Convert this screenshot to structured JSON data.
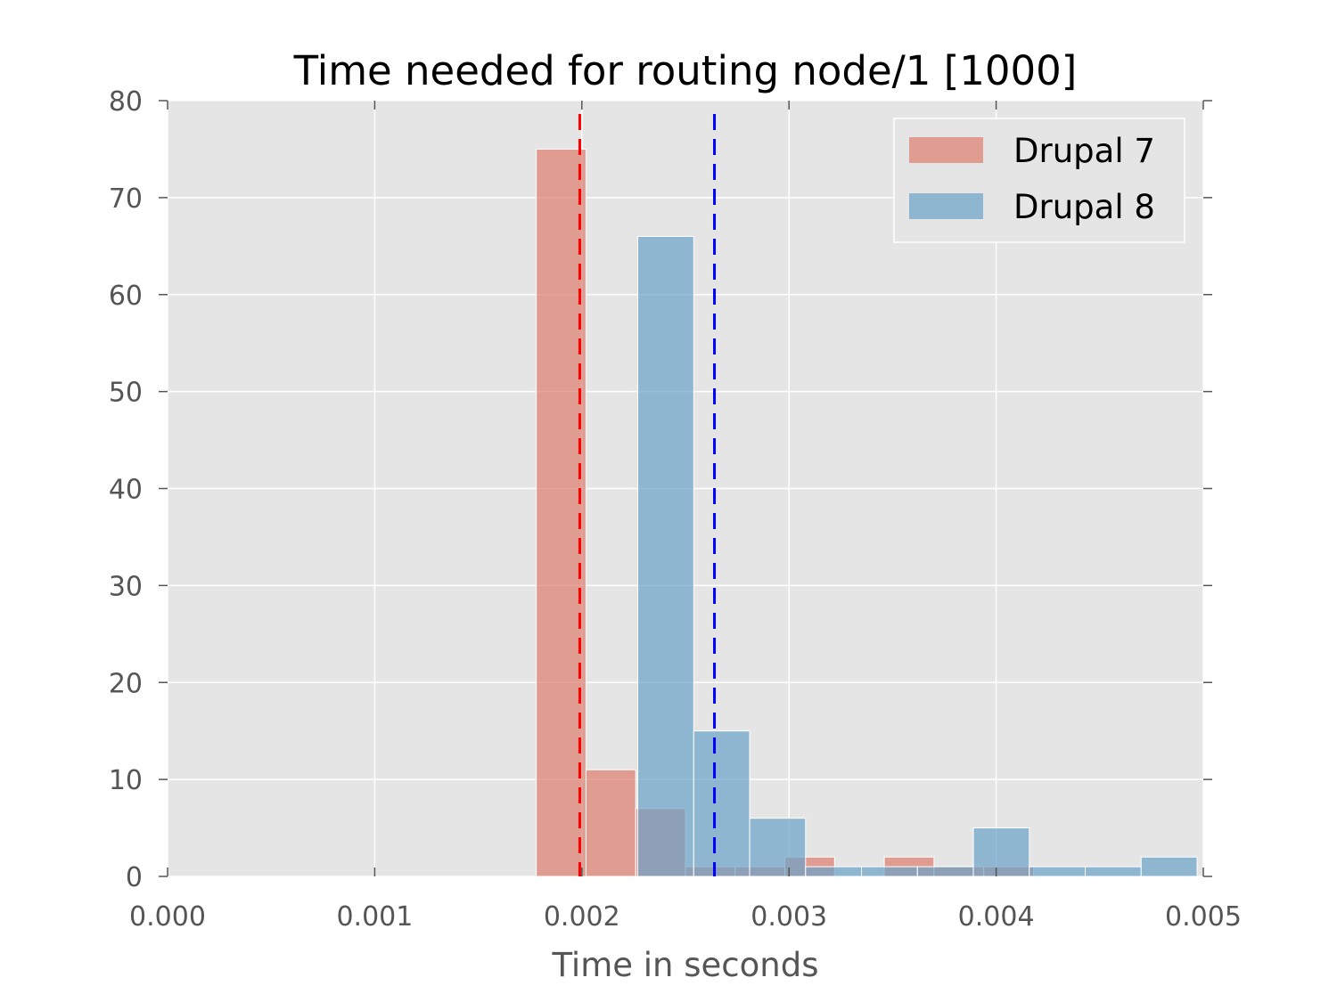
{
  "chart_data": {
    "type": "bar",
    "title": "Time needed for routing node/1 [1000]",
    "xlabel": "Time in seconds",
    "ylabel": "",
    "xlim": [
      0.0,
      0.005
    ],
    "ylim": [
      0,
      80
    ],
    "x_ticks": [
      "0.000",
      "0.001",
      "0.002",
      "0.003",
      "0.004",
      "0.005"
    ],
    "y_ticks": [
      "0",
      "10",
      "20",
      "30",
      "40",
      "50",
      "60",
      "70",
      "80"
    ],
    "grid": true,
    "legend_position": "top-right",
    "series": [
      {
        "name": "Drupal 7",
        "color": "#E07E6E",
        "bins": [
          {
            "x0": 0.00178,
            "x1": 0.00202,
            "count": 75
          },
          {
            "x0": 0.00202,
            "x1": 0.00226,
            "count": 11
          },
          {
            "x0": 0.00226,
            "x1": 0.0025,
            "count": 7
          },
          {
            "x0": 0.0025,
            "x1": 0.00274,
            "count": 1
          },
          {
            "x0": 0.00274,
            "x1": 0.00298,
            "count": 1
          },
          {
            "x0": 0.00298,
            "x1": 0.00322,
            "count": 2
          },
          {
            "x0": 0.00322,
            "x1": 0.00346,
            "count": 0
          },
          {
            "x0": 0.00346,
            "x1": 0.0037,
            "count": 2
          },
          {
            "x0": 0.0037,
            "x1": 0.00394,
            "count": 1
          },
          {
            "x0": 0.00394,
            "x1": 0.00418,
            "count": 1
          }
        ],
        "mean_line": 0.00199,
        "mean_color": "#FF0000"
      },
      {
        "name": "Drupal 8",
        "color": "#6AA3C8",
        "bins": [
          {
            "x0": 0.00227,
            "x1": 0.00254,
            "count": 66
          },
          {
            "x0": 0.00254,
            "x1": 0.00281,
            "count": 15
          },
          {
            "x0": 0.00281,
            "x1": 0.00308,
            "count": 6
          },
          {
            "x0": 0.00308,
            "x1": 0.00335,
            "count": 1
          },
          {
            "x0": 0.00335,
            "x1": 0.00362,
            "count": 1
          },
          {
            "x0": 0.00362,
            "x1": 0.00389,
            "count": 1
          },
          {
            "x0": 0.00389,
            "x1": 0.00416,
            "count": 5
          },
          {
            "x0": 0.00416,
            "x1": 0.00443,
            "count": 1
          },
          {
            "x0": 0.00443,
            "x1": 0.0047,
            "count": 1
          },
          {
            "x0": 0.0047,
            "x1": 0.00497,
            "count": 2
          }
        ],
        "mean_line": 0.00264,
        "mean_color": "#0000FF"
      }
    ]
  }
}
